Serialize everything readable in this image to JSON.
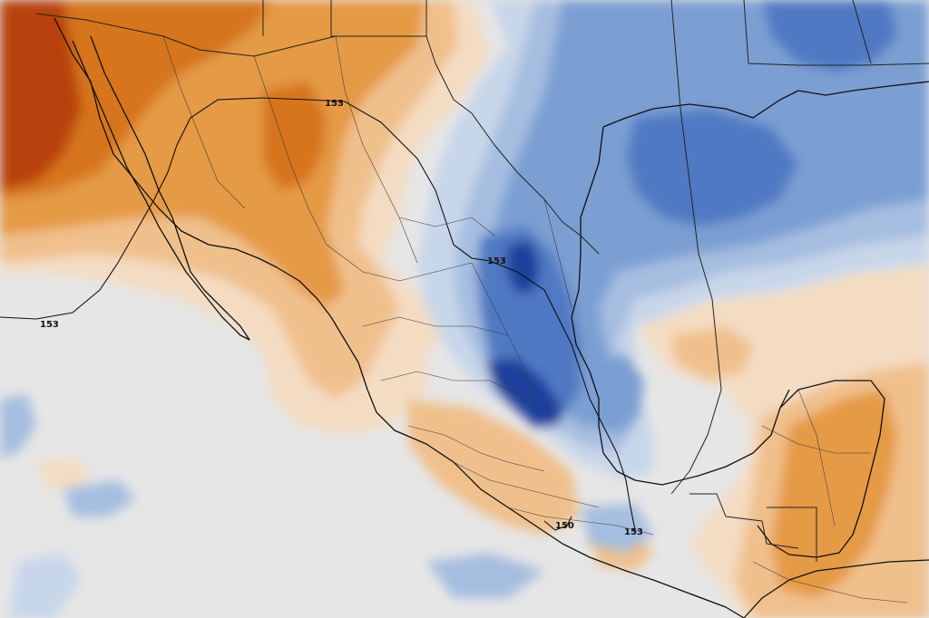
{
  "map": {
    "colors": {
      "background_neutral": "#e6e6e6",
      "warm_darkest": "#b8420e",
      "warm_dark": "#d6741e",
      "warm_mid": "#e59a45",
      "warm_light": "#f0c08c",
      "warm_faint": "#f4dcc2",
      "cool_faint": "#c8d6ea",
      "cool_light": "#a6bee0",
      "cool_mid": "#7c9fd3",
      "cool_dark": "#4f79c2",
      "cool_darkest": "#1e3f9c"
    },
    "contour_labels": [
      {
        "id": "pacific-west",
        "text": "153"
      },
      {
        "id": "sonora-north",
        "text": "153"
      },
      {
        "id": "coahuila",
        "text": "153"
      },
      {
        "id": "oaxaca-south",
        "text": "150"
      },
      {
        "id": "isthmus",
        "text": "153"
      }
    ]
  }
}
